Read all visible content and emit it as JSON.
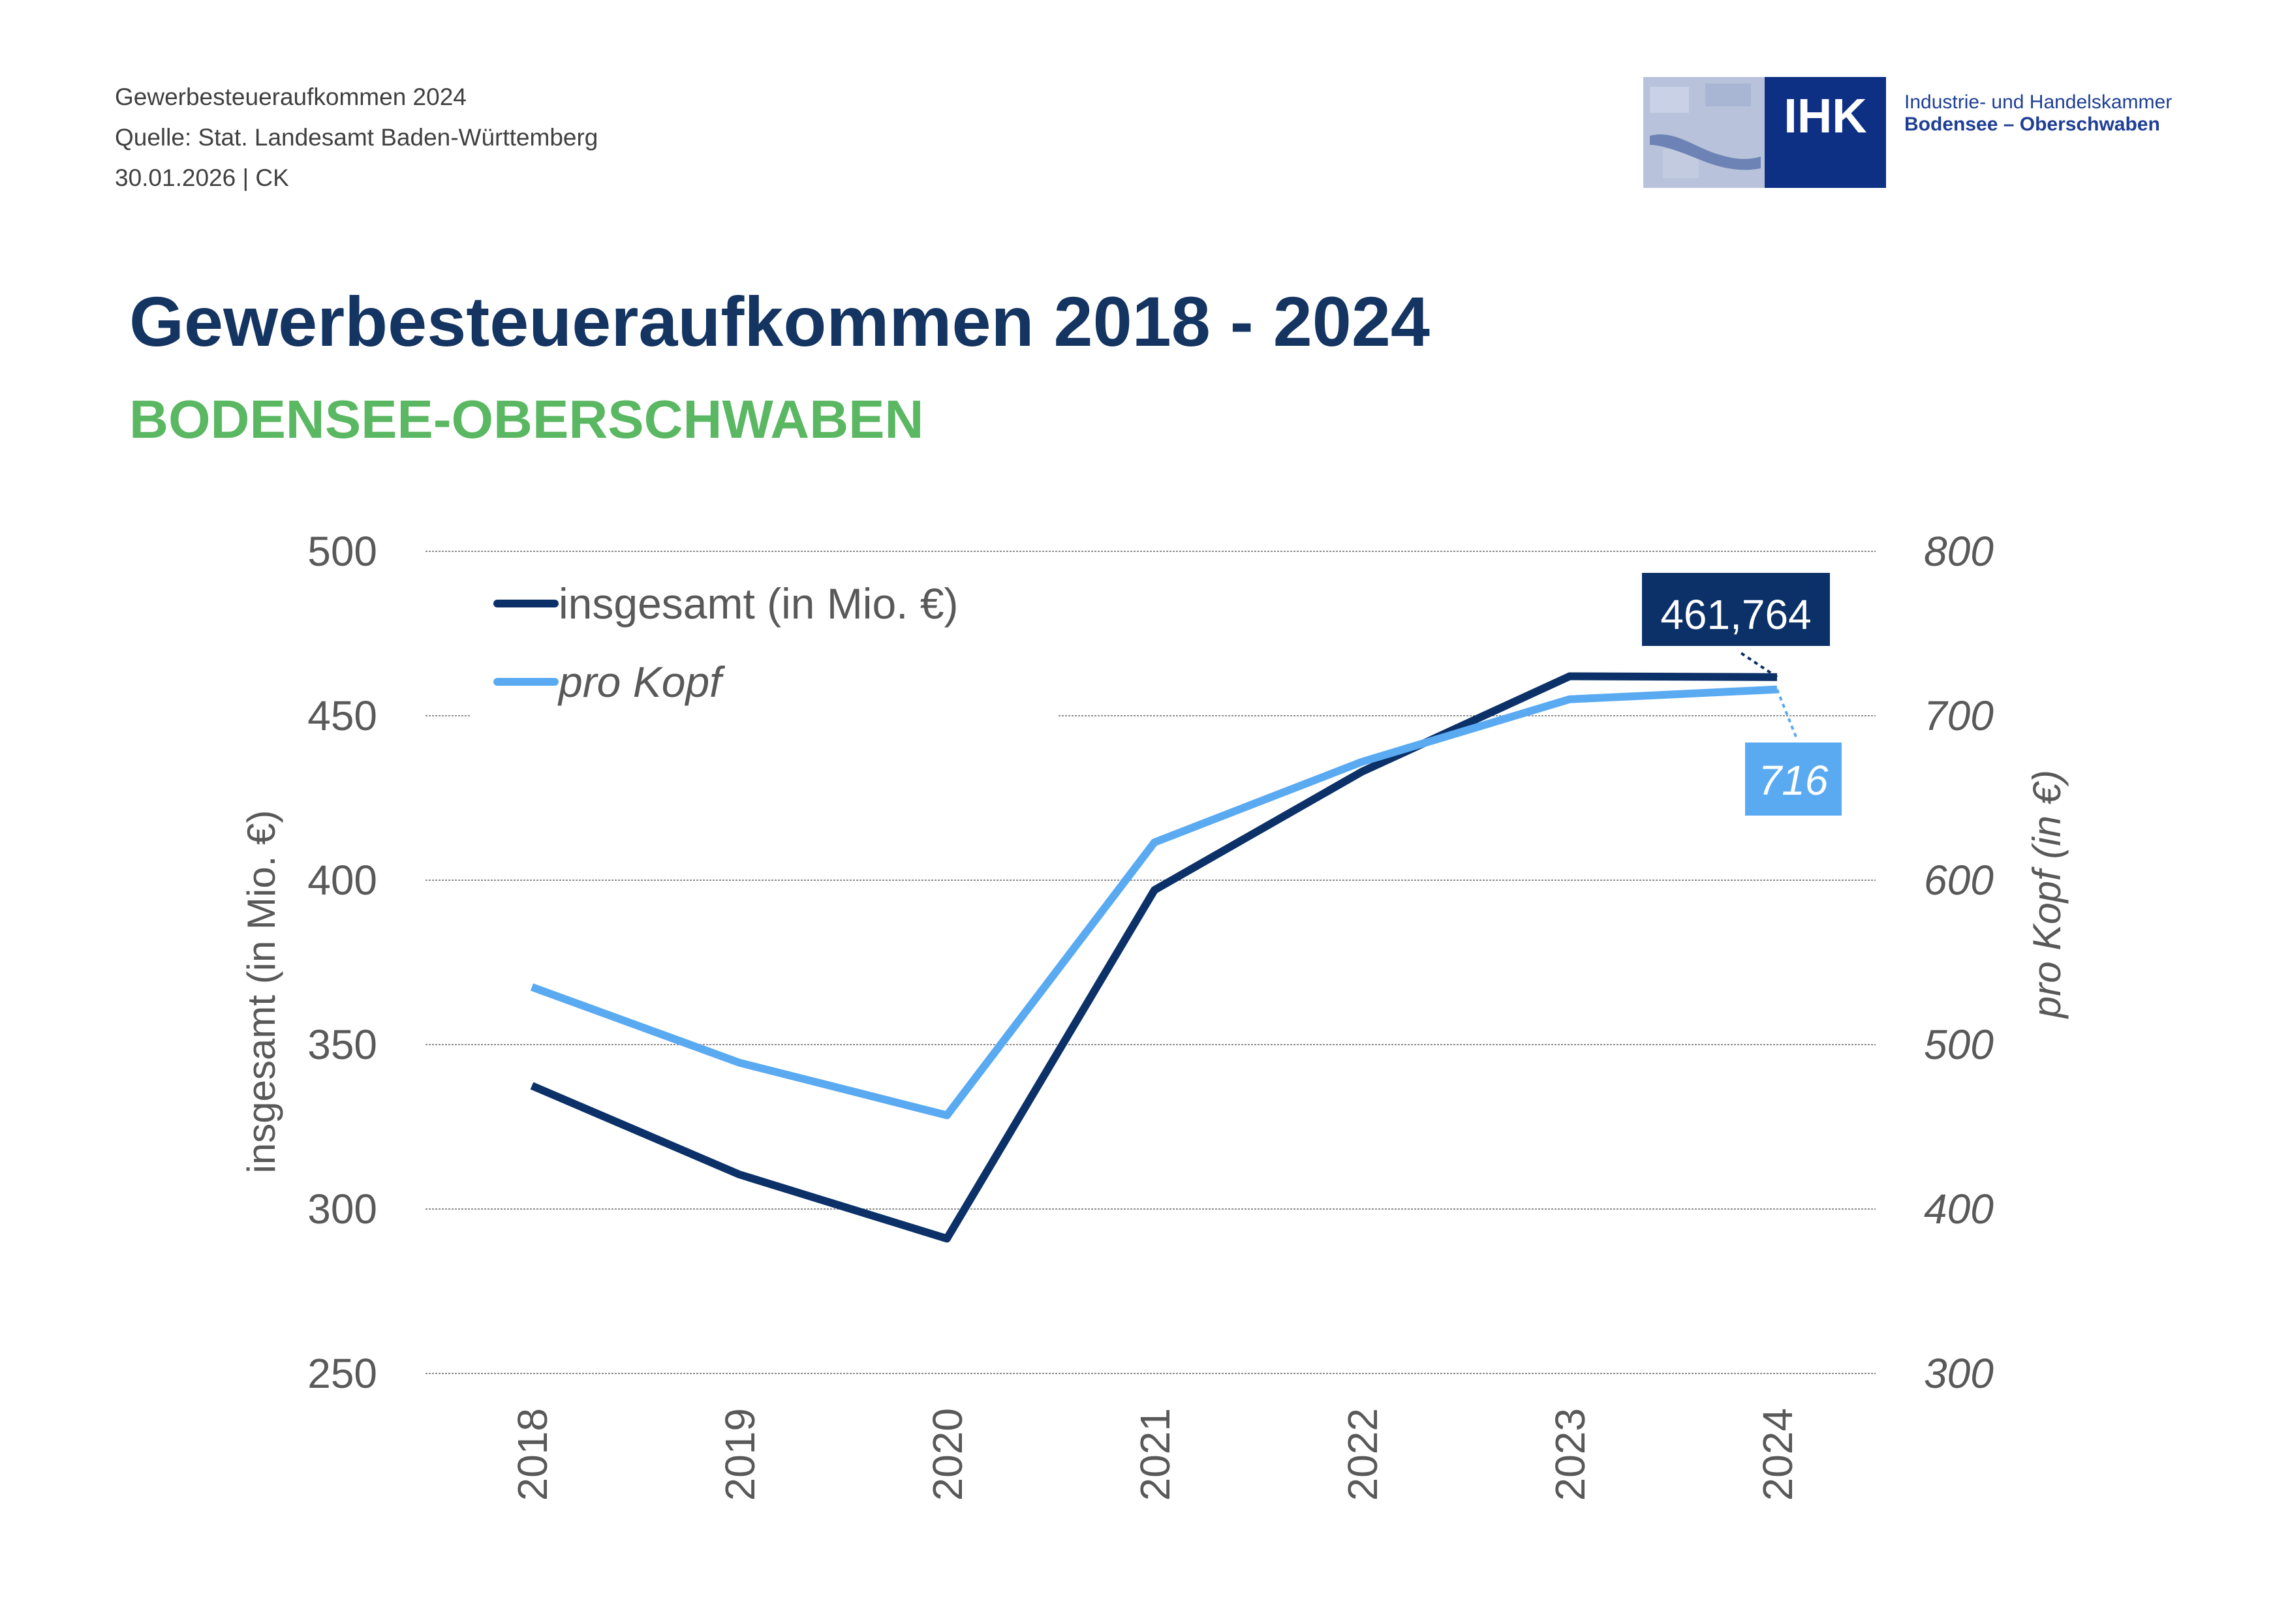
{
  "header": {
    "meta_lines": [
      "Gewerbesteueraufkommen 2024",
      "Quelle: Stat. Landesamt Baden-Württemberg",
      "30.01.2026 | CK"
    ]
  },
  "logo": {
    "badge": "IHK",
    "line1": "Industrie- und Handelskammer",
    "line2": "Bodensee – Oberschwaben"
  },
  "title": "Gewerbesteueraufkommen 2018 - 2024",
  "subtitle": "BODENSEE-OBERSCHWABEN",
  "colors": {
    "series_dark": "#0b3168",
    "series_light": "#5aaaf2",
    "grid": "#8c8c8c",
    "title": "#143461",
    "subtitle": "#5ab762"
  },
  "chart_data": {
    "type": "line",
    "categories": [
      "2018",
      "2019",
      "2020",
      "2021",
      "2022",
      "2023",
      "2024"
    ],
    "xlabel": "",
    "ylabel": "insgesamt (in Mio. €)",
    "ylim": [
      250,
      500
    ],
    "yticks": [
      250,
      300,
      350,
      400,
      450,
      500
    ],
    "y2label": "pro Kopf (in €)",
    "y2lim": [
      300,
      800
    ],
    "y2ticks": [
      300,
      400,
      500,
      600,
      700,
      800
    ],
    "grid": true,
    "legend_position": "top-left",
    "series": [
      {
        "name": "insgesamt (in Mio. €)",
        "axis": "left",
        "values": [
          337.5,
          310.5,
          291,
          397,
          433,
          462,
          461.764
        ],
        "data_label": "461,764",
        "color": "#0b3168"
      },
      {
        "name": "pro Kopf",
        "axis": "right",
        "values": [
          535,
          489,
          457,
          623,
          672,
          710,
          716
        ],
        "data_label": "716",
        "color": "#5aaaf2"
      }
    ]
  }
}
